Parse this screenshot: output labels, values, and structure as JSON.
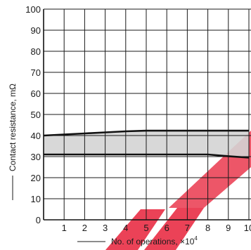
{
  "chart_data": {
    "type": "area",
    "xlabel": "No. of operations, ×10",
    "xlabel_exponent": "4",
    "ylabel": "Contact resistance, mΩ",
    "xlim": [
      0,
      10
    ],
    "ylim": [
      0,
      100
    ],
    "x_ticks": [
      1,
      2,
      3,
      4,
      5,
      6,
      7,
      8,
      9,
      10
    ],
    "y_ticks": [
      0,
      10,
      20,
      30,
      40,
      50,
      60,
      70,
      80,
      90,
      100
    ],
    "grid": true,
    "band_fill_color": "#d4d4d4",
    "x": [
      0,
      1,
      2,
      3,
      4,
      5,
      6,
      7,
      8,
      9,
      10
    ],
    "series": [
      {
        "role": "upper",
        "values": [
          40,
          40.5,
          41,
          41.5,
          42,
          42.3,
          42.3,
          42.3,
          42.3,
          42.3,
          42.3
        ]
      },
      {
        "role": "lower",
        "values": [
          31,
          31,
          31,
          31,
          31,
          31,
          31,
          31,
          31,
          30.2,
          29.5
        ]
      }
    ]
  }
}
